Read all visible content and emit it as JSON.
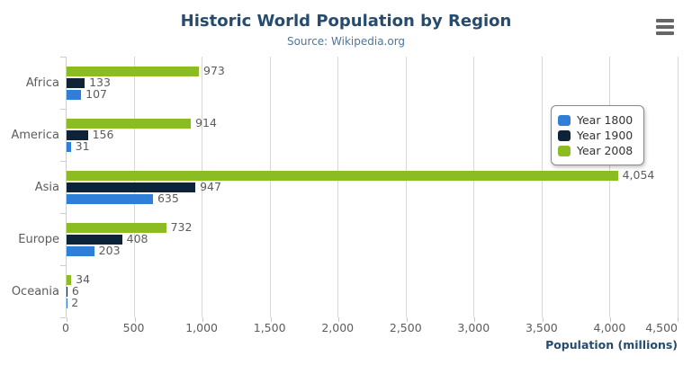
{
  "header": {
    "title": "Historic World Population by Region",
    "subtitle": "Source: Wikipedia.org"
  },
  "menu": {
    "icon": "hamburger-icon"
  },
  "chart_data": {
    "type": "bar",
    "orientation": "horizontal",
    "title": "Historic World Population by Region",
    "subtitle": "Source: Wikipedia.org",
    "categories": [
      "Africa",
      "America",
      "Asia",
      "Europe",
      "Oceania"
    ],
    "series": [
      {
        "name": "Year 1800",
        "color": "#2f7ed8",
        "values": [
          107,
          31,
          635,
          203,
          2
        ]
      },
      {
        "name": "Year 1900",
        "color": "#0d233a",
        "values": [
          133,
          156,
          947,
          408,
          6
        ]
      },
      {
        "name": "Year 2008",
        "color": "#8bbc21",
        "values": [
          973,
          914,
          4054,
          732,
          34
        ]
      }
    ],
    "bar_order_top_to_bottom": [
      "Year 2008",
      "Year 1900",
      "Year 1800"
    ],
    "data_labels": [
      "107",
      "133",
      "973",
      "31",
      "156",
      "914",
      "635",
      "947",
      "4,054",
      "203",
      "408",
      "732",
      "2",
      "6",
      "34"
    ],
    "xlabel": "Population (millions)",
    "ylabel": "",
    "xlim": [
      0,
      4500
    ],
    "x_tick_interval": 500,
    "x_tick_labels": [
      "0",
      "500",
      "1,000",
      "1,500",
      "2,000",
      "2,500",
      "3,000",
      "3,500",
      "4,000",
      "4,500"
    ],
    "grid": true,
    "legend_position": "right",
    "legend_entries": [
      "Year 1800",
      "Year 1900",
      "Year 2008"
    ]
  },
  "colors": {
    "title": "#274b6d",
    "subtitle": "#4d759e",
    "axis_label": "#5c5c5c",
    "data_label": "#5c5c5c",
    "gridline": "#d8d8d8",
    "axis_line": "#c0d0e0",
    "legend_border": "#8a8a8a",
    "legend_text": "#333333",
    "menu_icon": "#666666"
  }
}
